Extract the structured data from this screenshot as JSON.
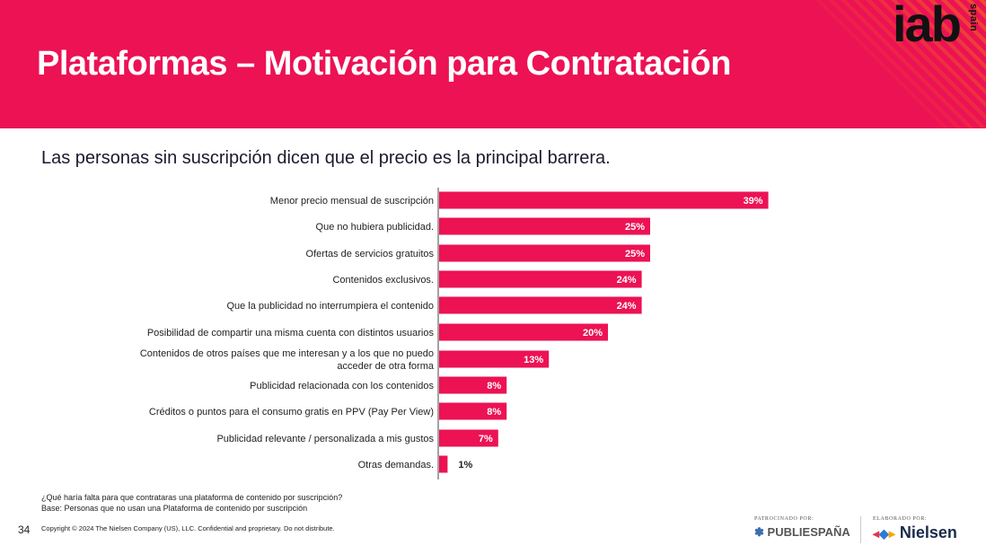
{
  "header": {
    "title": "Plataformas  – Motivación para Contratación"
  },
  "logo": {
    "main": "iab",
    "sub": "spain"
  },
  "subtitle": "Las personas sin suscripción dicen que el precio es la principal barrera.",
  "colors": {
    "header_bg": "#ec1254",
    "bar": "#ec1254",
    "stripe": "#f05a28"
  },
  "chart_data": {
    "type": "bar",
    "orientation": "horizontal",
    "categories": [
      "Menor precio mensual de suscripción",
      "Que no hubiera publicidad.",
      "Ofertas de servicios gratuitos",
      "Contenidos exclusivos.",
      "Que la publicidad no interrumpiera el contenido",
      "Posibilidad de compartir una misma cuenta con distintos usuarios",
      "Contenidos de otros países que me interesan y a los que no puedo acceder de otra forma",
      "Publicidad relacionada con los contenidos",
      "Créditos o puntos para el consumo gratis en PPV (Pay Per View)",
      "Publicidad relevante / personalizada a mis gustos",
      "Otras demandas."
    ],
    "values": [
      39,
      25,
      25,
      24,
      24,
      20,
      13,
      8,
      8,
      7,
      1
    ],
    "labels": [
      "39%",
      "25%",
      "25%",
      "24%",
      "24%",
      "20%",
      "13%",
      "8%",
      "8%",
      "7%",
      "1%"
    ],
    "unit": "%"
  },
  "footnotes": {
    "question": "¿Qué haría falta para que contrataras una plataforma de contenido por suscripción?",
    "base": "Base: Personas  que no usan una Plataforma de contenido por suscripción"
  },
  "footer": {
    "page_number": "34",
    "copyright": "Copyright © 2024 The Nielsen Company (US), LLC. Confidential and proprietary. Do not distribute.",
    "sponsored_by": "PATROCINADO POR:",
    "sponsor_name": "PUBLIESPAÑA",
    "made_by": "ELABORADO POR:",
    "maker_name": "Nielsen"
  }
}
